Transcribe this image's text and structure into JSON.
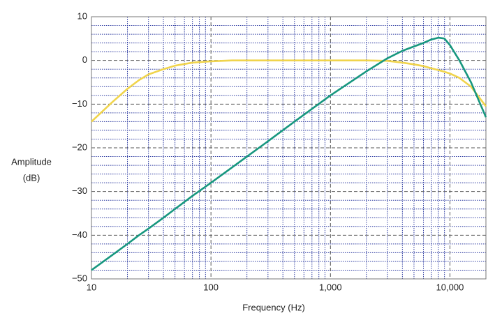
{
  "chart_data": {
    "type": "line",
    "ylabel": [
      "Amplitude",
      "(dB)"
    ],
    "xlabel": "Frequency (Hz)",
    "xscale": "log",
    "xlim": [
      10,
      20000
    ],
    "xticks": [
      10,
      100,
      {
        "value": 1000,
        "label": "1,000"
      },
      {
        "value": 10000,
        "label": "10,000"
      }
    ],
    "ylim": [
      -50,
      10
    ],
    "yticks": [
      {
        "value": -50,
        "label": "−50"
      },
      {
        "value": -40,
        "label": "−40"
      },
      {
        "value": -30,
        "label": "−30"
      },
      {
        "value": -20,
        "label": "−20"
      },
      {
        "value": -10,
        "label": "−10"
      },
      0,
      10
    ],
    "grid": true,
    "minor_grid": true,
    "x": [
      10,
      15,
      20,
      25,
      30,
      40,
      50,
      70,
      100,
      150,
      200,
      300,
      500,
      1000,
      2000,
      3000,
      4000,
      5000,
      6000,
      7000,
      8000,
      9000,
      10000,
      12000,
      15000,
      20000
    ],
    "series": [
      {
        "color": "#f0d44c",
        "values": [
          -14,
          -9.5,
          -6.5,
          -4.5,
          -3.2,
          -2,
          -1.2,
          -0.5,
          -0.2,
          0,
          0,
          0,
          0,
          0,
          0,
          -0.1,
          -0.5,
          -0.9,
          -1.3,
          -1.8,
          -2.2,
          -2.6,
          -3,
          -4,
          -6,
          -10.5
        ]
      },
      {
        "color": "#17977f",
        "values": [
          -48,
          -44.5,
          -42,
          -40,
          -38.5,
          -36,
          -34,
          -31,
          -28,
          -24.5,
          -22,
          -18.5,
          -14,
          -8,
          -2.5,
          0.5,
          2.2,
          3.2,
          4,
          4.8,
          5.2,
          5,
          3.5,
          0,
          -5,
          -13
        ]
      }
    ]
  }
}
